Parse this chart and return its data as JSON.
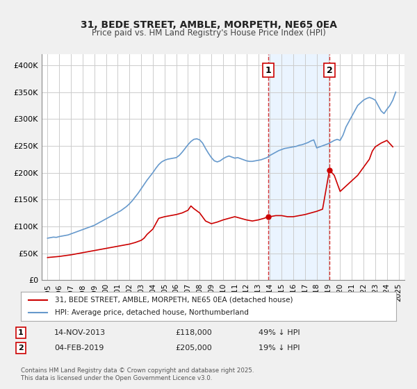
{
  "title": "31, BEDE STREET, AMBLE, MORPETH, NE65 0EA",
  "subtitle": "Price paid vs. HM Land Registry's House Price Index (HPI)",
  "legend_line1": "31, BEDE STREET, AMBLE, MORPETH, NE65 0EA (detached house)",
  "legend_line2": "HPI: Average price, detached house, Northumberland",
  "transaction1_label": "1",
  "transaction1_date": "14-NOV-2013",
  "transaction1_price": "£118,000",
  "transaction1_hpi": "49% ↓ HPI",
  "transaction1_year": 2013.87,
  "transaction2_label": "2",
  "transaction2_date": "04-FEB-2019",
  "transaction2_price": "£205,000",
  "transaction2_hpi": "19% ↓ HPI",
  "transaction2_year": 2019.09,
  "footer": "Contains HM Land Registry data © Crown copyright and database right 2025.\nThis data is licensed under the Open Government Licence v3.0.",
  "red_color": "#cc0000",
  "blue_color": "#6699cc",
  "background_color": "#f0f0f0",
  "plot_bg_color": "#ffffff",
  "grid_color": "#cccccc",
  "shade_color": "#ddeeff",
  "ylim": [
    0,
    420000
  ],
  "xlim_start": 1994.5,
  "xlim_end": 2025.5,
  "yticks": [
    0,
    50000,
    100000,
    150000,
    200000,
    250000,
    300000,
    350000,
    400000
  ],
  "ytick_labels": [
    "£0",
    "£50K",
    "£100K",
    "£150K",
    "£200K",
    "£250K",
    "£300K",
    "£350K",
    "£400K"
  ],
  "xticks": [
    1995,
    1996,
    1997,
    1998,
    1999,
    2000,
    2001,
    2002,
    2003,
    2004,
    2005,
    2006,
    2007,
    2008,
    2009,
    2010,
    2011,
    2012,
    2013,
    2014,
    2015,
    2016,
    2017,
    2018,
    2019,
    2020,
    2021,
    2022,
    2023,
    2024,
    2025
  ],
  "hpi_x": [
    1995.0,
    1995.25,
    1995.5,
    1995.75,
    1996.0,
    1996.25,
    1996.5,
    1996.75,
    1997.0,
    1997.25,
    1997.5,
    1997.75,
    1998.0,
    1998.25,
    1998.5,
    1998.75,
    1999.0,
    1999.25,
    1999.5,
    1999.75,
    2000.0,
    2000.25,
    2000.5,
    2000.75,
    2001.0,
    2001.25,
    2001.5,
    2001.75,
    2002.0,
    2002.25,
    2002.5,
    2002.75,
    2003.0,
    2003.25,
    2003.5,
    2003.75,
    2004.0,
    2004.25,
    2004.5,
    2004.75,
    2005.0,
    2005.25,
    2005.5,
    2005.75,
    2006.0,
    2006.25,
    2006.5,
    2006.75,
    2007.0,
    2007.25,
    2007.5,
    2007.75,
    2008.0,
    2008.25,
    2008.5,
    2008.75,
    2009.0,
    2009.25,
    2009.5,
    2009.75,
    2010.0,
    2010.25,
    2010.5,
    2010.75,
    2011.0,
    2011.25,
    2011.5,
    2011.75,
    2012.0,
    2012.25,
    2012.5,
    2012.75,
    2013.0,
    2013.25,
    2013.5,
    2013.75,
    2014.0,
    2014.25,
    2014.5,
    2014.75,
    2015.0,
    2015.25,
    2015.5,
    2015.75,
    2016.0,
    2016.25,
    2016.5,
    2016.75,
    2017.0,
    2017.25,
    2017.5,
    2017.75,
    2018.0,
    2018.25,
    2018.5,
    2018.75,
    2019.0,
    2019.25,
    2019.5,
    2019.75,
    2020.0,
    2020.25,
    2020.5,
    2020.75,
    2021.0,
    2021.25,
    2021.5,
    2021.75,
    2022.0,
    2022.25,
    2022.5,
    2022.75,
    2023.0,
    2023.25,
    2023.5,
    2023.75,
    2024.0,
    2024.25,
    2024.5,
    2024.75
  ],
  "hpi_y": [
    78000,
    79000,
    80000,
    79500,
    81000,
    82000,
    83000,
    84000,
    86000,
    88000,
    90000,
    92000,
    94000,
    96000,
    98000,
    100000,
    102000,
    105000,
    108000,
    111000,
    114000,
    117000,
    120000,
    123000,
    126000,
    129000,
    133000,
    137000,
    142000,
    148000,
    155000,
    162000,
    170000,
    178000,
    186000,
    193000,
    200000,
    208000,
    215000,
    220000,
    223000,
    225000,
    226000,
    227000,
    228000,
    232000,
    238000,
    245000,
    252000,
    258000,
    262000,
    263000,
    261000,
    255000,
    245000,
    236000,
    228000,
    222000,
    220000,
    222000,
    226000,
    229000,
    231000,
    229000,
    227000,
    228000,
    226000,
    224000,
    222000,
    221000,
    221000,
    222000,
    223000,
    224000,
    226000,
    228000,
    232000,
    235000,
    238000,
    241000,
    243000,
    245000,
    246000,
    247000,
    248000,
    249000,
    251000,
    252000,
    254000,
    256000,
    259000,
    261000,
    246000,
    248000,
    250000,
    252000,
    254000,
    257000,
    260000,
    262000,
    260000,
    270000,
    285000,
    295000,
    305000,
    315000,
    325000,
    330000,
    335000,
    338000,
    340000,
    338000,
    335000,
    325000,
    315000,
    310000,
    318000,
    325000,
    335000,
    350000
  ],
  "red_x": [
    1995.0,
    1995.5,
    1996.0,
    1996.5,
    1997.0,
    1997.5,
    1998.0,
    1998.5,
    1999.0,
    1999.5,
    2000.0,
    2000.5,
    2001.0,
    2001.5,
    2002.0,
    2002.5,
    2003.0,
    2003.25,
    2003.5,
    2003.75,
    2004.0,
    2004.25,
    2004.5,
    2005.0,
    2005.5,
    2006.0,
    2006.5,
    2007.0,
    2007.25,
    2007.5,
    2008.0,
    2008.5,
    2009.0,
    2009.5,
    2010.0,
    2010.5,
    2011.0,
    2011.5,
    2012.0,
    2012.5,
    2013.0,
    2013.5,
    2013.87,
    2014.0,
    2014.5,
    2015.0,
    2015.5,
    2016.0,
    2016.5,
    2017.0,
    2017.5,
    2018.0,
    2018.5,
    2019.09,
    2019.5,
    2020.0,
    2020.5,
    2021.0,
    2021.5,
    2022.0,
    2022.5,
    2022.75,
    2023.0,
    2023.5,
    2024.0,
    2024.5
  ],
  "red_y": [
    42000,
    43000,
    44000,
    45500,
    47000,
    49000,
    51000,
    53000,
    55000,
    57000,
    59000,
    61000,
    63000,
    65000,
    67000,
    70000,
    74000,
    78000,
    85000,
    90000,
    95000,
    105000,
    115000,
    118000,
    120000,
    122000,
    125000,
    130000,
    138000,
    133000,
    125000,
    110000,
    105000,
    108000,
    112000,
    115000,
    118000,
    115000,
    112000,
    110000,
    112000,
    115000,
    118000,
    118000,
    120000,
    120000,
    118000,
    118000,
    120000,
    122000,
    125000,
    128000,
    132000,
    205000,
    195000,
    165000,
    175000,
    185000,
    195000,
    210000,
    225000,
    240000,
    248000,
    255000,
    260000,
    248000
  ]
}
